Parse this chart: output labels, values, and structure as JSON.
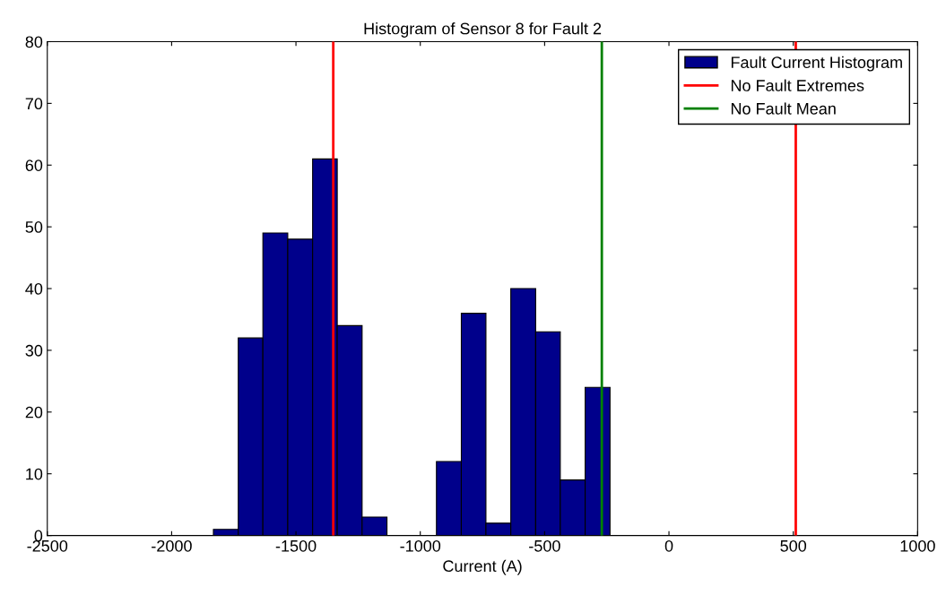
{
  "chart_data": {
    "type": "histogram",
    "title": "Histogram of Sensor 8 for Fault 2",
    "xlabel": "Current (A)",
    "bins": [
      -1832,
      -1732,
      -1633,
      -1533,
      -1433,
      -1334,
      -1234,
      -1134,
      -1035,
      -935,
      -835,
      -736,
      -636,
      -536,
      -437,
      -337,
      -237
    ],
    "series": [
      {
        "name": "Fault Current Histogram",
        "color": "#00008b",
        "values": [
          1,
          32,
          49,
          48,
          61,
          34,
          3,
          0,
          0,
          12,
          36,
          2,
          40,
          33,
          9,
          24
        ]
      },
      {
        "type": "line",
        "name": "No Fault Extremes",
        "color": "#ff0000",
        "x": [
          -1350,
          -1350,
          -420,
          510,
          510
        ],
        "values": [
          0,
          80,
          null,
          80,
          0
        ]
      },
      {
        "type": "line",
        "name": "No Fault Mean",
        "color": "#008000",
        "x": [
          -270,
          -270
        ],
        "values": [
          0,
          80
        ]
      }
    ],
    "xlim": [
      -2500,
      1000
    ],
    "xticks": [
      -2500,
      -2000,
      -1500,
      -1000,
      -500,
      0,
      500,
      1000
    ],
    "ylim": [
      0,
      80
    ],
    "yticks": [
      0,
      10,
      20,
      30,
      40,
      50,
      60,
      70,
      80
    ],
    "grid": false,
    "legend": "top right"
  }
}
